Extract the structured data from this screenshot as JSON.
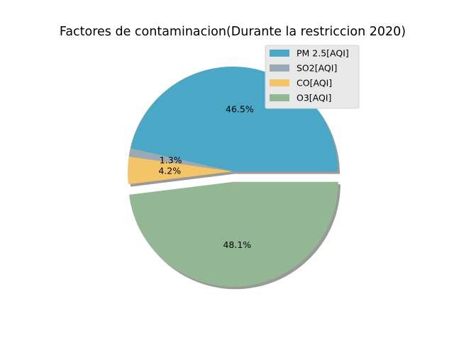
{
  "chart_data": {
    "type": "pie",
    "title": "Factores de contaminacion(Durante la restriccion 2020)",
    "slices": [
      {
        "label": "PM 2.5[AQI]",
        "pct_label": "46.5%",
        "value": 46.5,
        "color": "#4aa8c6",
        "explode": false
      },
      {
        "label": "SO2[AQI]",
        "pct_label": "1.3%",
        "value": 1.3,
        "color": "#9aaab4",
        "explode": false
      },
      {
        "label": "CO[AQI]",
        "pct_label": "4.2%",
        "value": 4.2,
        "color": "#f4c468",
        "explode": false
      },
      {
        "label": "O3[AQI]",
        "pct_label": "48.1%",
        "value": 48.1,
        "color": "#93b792",
        "explode": true
      }
    ],
    "shadow": true,
    "legend": "top-right"
  }
}
